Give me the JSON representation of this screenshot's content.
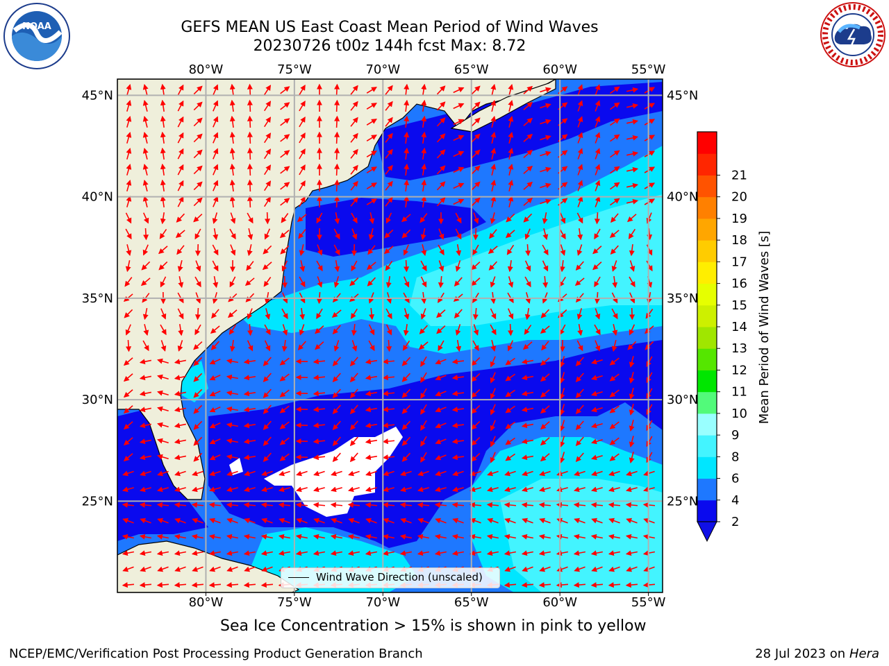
{
  "title_line1": "GEFS MEAN US East Coast Mean Period of Wind Waves",
  "title_line2": "20230726 t00z 144h fcst   Max: 8.72",
  "map": {
    "lon_labels": [
      "80°W",
      "75°W",
      "70°W",
      "65°W",
      "60°W",
      "55°W"
    ],
    "lat_labels": [
      "45°N",
      "40°N",
      "35°N",
      "30°N",
      "25°N"
    ],
    "lon_values": [
      -80,
      -75,
      -70,
      -65,
      -60,
      -55
    ],
    "lat_values": [
      45,
      40,
      35,
      30,
      25
    ],
    "extent": {
      "lon_min": -85,
      "lon_max": -54.2,
      "lat_min": 20.5,
      "lat_max": 45.8
    },
    "colors": {
      "land": "#efefdb",
      "grid": "#b0b0b0",
      "arrow": "#ff0000"
    }
  },
  "legend": {
    "label": "Wind Wave Direction (unscaled)"
  },
  "colorbar": {
    "label": "Mean Period of Wind Waves [s]",
    "ticks": [
      "2",
      "4",
      "6",
      "8",
      "9",
      "10",
      "11",
      "12",
      "13",
      "14",
      "15",
      "16",
      "17",
      "18",
      "19",
      "20",
      "21"
    ],
    "colors": [
      "#0a0aee",
      "#1e78ff",
      "#00e6ff",
      "#43f4ff",
      "#99ffff",
      "#52fa7a",
      "#00e600",
      "#55e600",
      "#a0e600",
      "#cdf000",
      "#e6ff00",
      "#ffee00",
      "#ffcc00",
      "#ffa600",
      "#ff8000",
      "#ff5300",
      "#ff2600",
      "#ff0000"
    ],
    "under_color": "#1010e6"
  },
  "footer": {
    "ice_note": "Sea Ice Concentration > 15% is shown in pink to yellow",
    "credit": "NCEP/EMC/Verification Post Processing Product Generation Branch",
    "date_prefix": "28 Jul 2023 on ",
    "date_host": "Hera"
  },
  "logos": {
    "noaa": {
      "text": "NOAA",
      "ring_text": "NATIONAL OCEANIC AND ATMOSPHERIC ADMINISTRATION"
    },
    "nws": {
      "ring_text": "NATIONAL WEATHER SERVICE"
    }
  }
}
